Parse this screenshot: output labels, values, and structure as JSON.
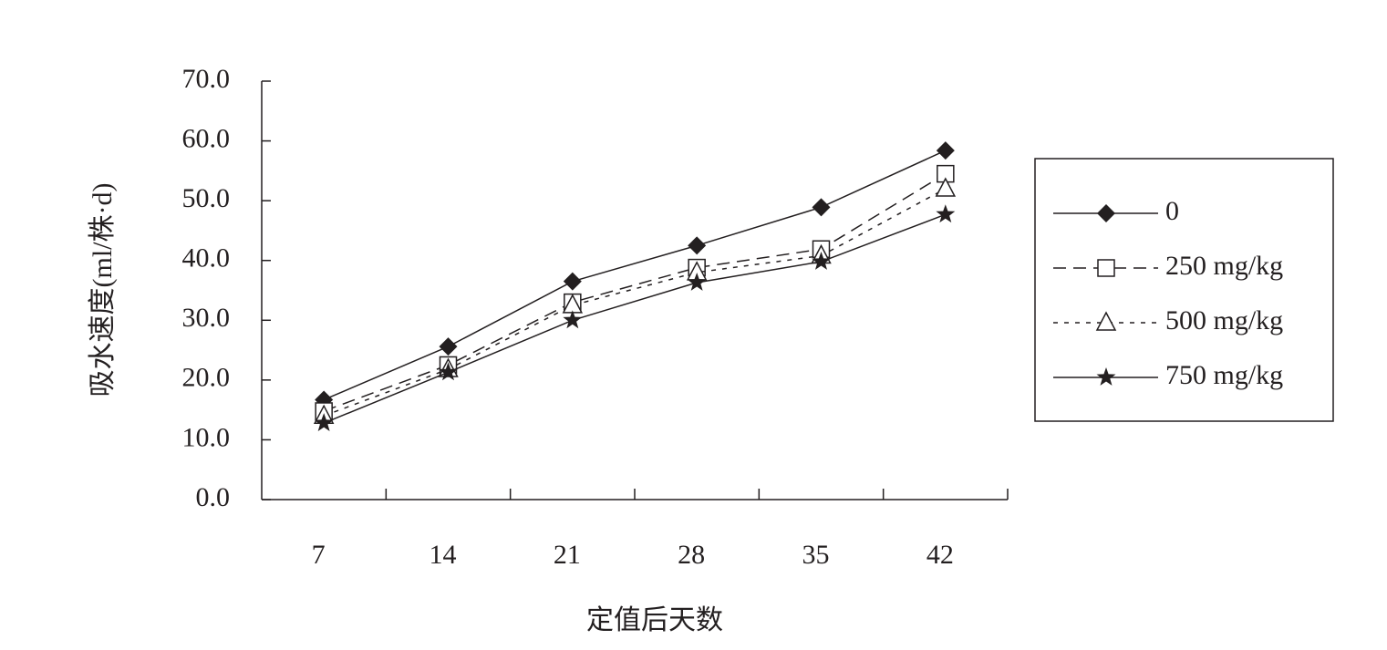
{
  "chart_data": {
    "type": "line",
    "x_label": "定值后天数",
    "y_label": "吸水速度(ml/株·d)",
    "categories": [
      "7",
      "14",
      "21",
      "28",
      "35",
      "42"
    ],
    "series": [
      {
        "name": "0",
        "color": "#231f20",
        "marker": "diamond",
        "line_style": "solid",
        "values": [
          16.7,
          25.6,
          36.5,
          42.5,
          48.9,
          58.4
        ]
      },
      {
        "name": "250 mg/kg",
        "color": "#231f20",
        "marker": "square",
        "line_style": "dashed",
        "values": [
          14.8,
          22.5,
          33.0,
          38.8,
          41.9,
          54.5
        ]
      },
      {
        "name": "500 mg/kg",
        "color": "#231f20",
        "marker": "triangle",
        "line_style": "dotted",
        "values": [
          14.0,
          21.8,
          32.5,
          38.0,
          40.8,
          52.0
        ]
      },
      {
        "name": "750 mg/kg",
        "color": "#231f20",
        "marker": "star",
        "line_style": "solid",
        "values": [
          12.8,
          21.3,
          30.0,
          36.3,
          39.8,
          47.7
        ]
      }
    ],
    "ylim": [
      0,
      70
    ],
    "yticks": [
      {
        "value": 0,
        "label": "0.0"
      },
      {
        "value": 10,
        "label": "10.0"
      },
      {
        "value": 20,
        "label": "20.0"
      },
      {
        "value": 30,
        "label": "30.0"
      },
      {
        "value": 40,
        "label": "40.0"
      },
      {
        "value": 50,
        "label": "50.0"
      },
      {
        "value": 60,
        "label": "60.0"
      },
      {
        "value": 70,
        "label": "70.0"
      }
    ],
    "grid": false,
    "legend": "right"
  }
}
